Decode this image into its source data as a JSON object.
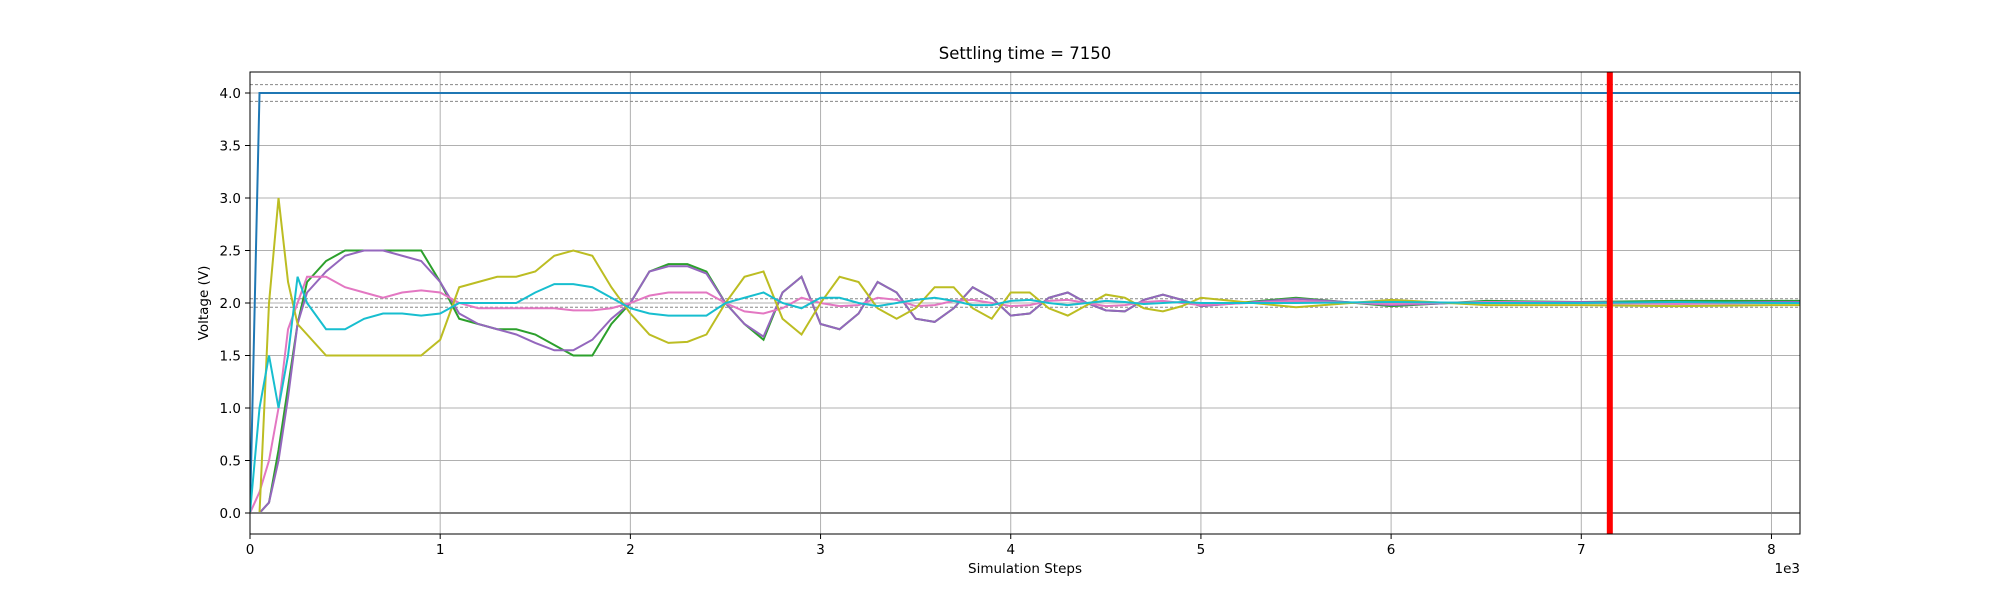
{
  "chart_data": {
    "type": "line",
    "title": "Settling time = 7150",
    "xlabel": "Simulation Steps",
    "ylabel": "Voltage (V)",
    "x_offset_label": "1e3",
    "xlim": [
      0,
      8150
    ],
    "ylim": [
      -0.2,
      4.2
    ],
    "xticks": [
      {
        "value": 0,
        "label": "0"
      },
      {
        "value": 1000,
        "label": "1"
      },
      {
        "value": 2000,
        "label": "2"
      },
      {
        "value": 3000,
        "label": "3"
      },
      {
        "value": 4000,
        "label": "4"
      },
      {
        "value": 5000,
        "label": "5"
      },
      {
        "value": 6000,
        "label": "6"
      },
      {
        "value": 7000,
        "label": "7"
      },
      {
        "value": 8000,
        "label": "8"
      }
    ],
    "yticks": [
      {
        "value": 0,
        "label": "0.0"
      },
      {
        "value": 0.5,
        "label": "0.5"
      },
      {
        "value": 1,
        "label": "1.0"
      },
      {
        "value": 1.5,
        "label": "1.5"
      },
      {
        "value": 2,
        "label": "2.0"
      },
      {
        "value": 2.5,
        "label": "2.5"
      },
      {
        "value": 3,
        "label": "3.0"
      },
      {
        "value": 3.5,
        "label": "3.5"
      },
      {
        "value": 4,
        "label": "4.0"
      }
    ],
    "grid": true,
    "threshold_lines": {
      "color": "#888888",
      "values": [
        4.08,
        3.92,
        2.04,
        1.96
      ]
    },
    "vline": {
      "x": 7150,
      "color": "#ff0000"
    },
    "x": [
      0,
      50,
      100,
      150,
      200,
      250,
      300,
      400,
      500,
      600,
      700,
      800,
      900,
      1000,
      1100,
      1200,
      1300,
      1400,
      1500,
      1600,
      1700,
      1800,
      1900,
      2000,
      2100,
      2200,
      2300,
      2400,
      2500,
      2600,
      2700,
      2800,
      2900,
      3000,
      3100,
      3200,
      3300,
      3400,
      3500,
      3600,
      3700,
      3800,
      3900,
      4000,
      4100,
      4200,
      4300,
      4400,
      4500,
      4600,
      4700,
      4800,
      4900,
      5000,
      5500,
      6000,
      6500,
      7000,
      7500,
      8000,
      8150
    ],
    "series": [
      {
        "color": "#1f77b4",
        "values": [
          0,
          4,
          4,
          4,
          4,
          4,
          4,
          4,
          4,
          4,
          4,
          4,
          4,
          4,
          4,
          4,
          4,
          4,
          4,
          4,
          4,
          4,
          4,
          4,
          4,
          4,
          4,
          4,
          4,
          4,
          4,
          4,
          4,
          4,
          4,
          4,
          4,
          4,
          4,
          4,
          4,
          4,
          4,
          4,
          4,
          4,
          4,
          4,
          4,
          4,
          4,
          4,
          4,
          4,
          4,
          4,
          4,
          4,
          4,
          4,
          4
        ]
      },
      {
        "color": "#2ca02c",
        "values": [
          0,
          0,
          0.1,
          0.6,
          1.2,
          1.8,
          2.2,
          2.4,
          2.5,
          2.5,
          2.5,
          2.5,
          2.5,
          2.2,
          1.85,
          1.8,
          1.75,
          1.75,
          1.7,
          1.6,
          1.5,
          1.5,
          1.8,
          2.0,
          2.3,
          2.37,
          2.37,
          2.3,
          2.0,
          1.8,
          1.65,
          2.1,
          2.25,
          1.8,
          1.75,
          1.9,
          2.2,
          2.1,
          1.85,
          1.82,
          1.95,
          2.15,
          2.05,
          1.88,
          1.9,
          2.05,
          2.1,
          2.0,
          1.93,
          1.92,
          2.03,
          2.08,
          2.03,
          1.97,
          2.05,
          1.97,
          2.02,
          2.01,
          2.02,
          2.02,
          2.02
        ]
      },
      {
        "color": "#9467bd",
        "values": [
          0,
          0,
          0.1,
          0.5,
          1.1,
          1.8,
          2.1,
          2.3,
          2.45,
          2.5,
          2.5,
          2.45,
          2.4,
          2.2,
          1.9,
          1.8,
          1.75,
          1.7,
          1.62,
          1.55,
          1.55,
          1.65,
          1.85,
          2.0,
          2.3,
          2.35,
          2.35,
          2.28,
          2.0,
          1.8,
          1.68,
          2.1,
          2.25,
          1.8,
          1.75,
          1.9,
          2.2,
          2.1,
          1.85,
          1.82,
          1.95,
          2.15,
          2.05,
          1.88,
          1.9,
          2.05,
          2.1,
          2.0,
          1.93,
          1.92,
          2.03,
          2.08,
          2.03,
          1.97,
          2.04,
          1.98,
          2.01,
          2.01,
          2.0,
          2.01,
          2.01
        ]
      },
      {
        "color": "#e377c2",
        "values": [
          0,
          0.2,
          0.5,
          1.0,
          1.75,
          2.0,
          2.25,
          2.25,
          2.15,
          2.1,
          2.05,
          2.1,
          2.12,
          2.1,
          2.0,
          1.95,
          1.95,
          1.95,
          1.95,
          1.95,
          1.93,
          1.93,
          1.95,
          2.0,
          2.07,
          2.1,
          2.1,
          2.1,
          2.0,
          1.92,
          1.9,
          1.95,
          2.05,
          2.0,
          1.97,
          1.98,
          2.05,
          2.03,
          1.97,
          1.98,
          2.02,
          2.03,
          2.0,
          1.97,
          1.98,
          2.02,
          2.03,
          2.0,
          1.97,
          1.98,
          2.01,
          2.02,
          2.0,
          1.98,
          2.02,
          1.99,
          2.01,
          2.0,
          1.99,
          2.0,
          2.0
        ]
      },
      {
        "color": "#bcbd22",
        "values": [
          0,
          0,
          2.0,
          3.0,
          2.2,
          1.8,
          1.7,
          1.5,
          1.5,
          1.5,
          1.5,
          1.5,
          1.5,
          1.65,
          2.15,
          2.2,
          2.25,
          2.25,
          2.3,
          2.45,
          2.5,
          2.45,
          2.15,
          1.9,
          1.7,
          1.62,
          1.63,
          1.7,
          2.0,
          2.25,
          2.3,
          1.85,
          1.7,
          2.0,
          2.25,
          2.2,
          1.95,
          1.85,
          1.95,
          2.15,
          2.15,
          1.95,
          1.85,
          2.1,
          2.1,
          1.95,
          1.88,
          1.98,
          2.08,
          2.05,
          1.95,
          1.92,
          1.97,
          2.05,
          1.96,
          2.03,
          1.98,
          1.98,
          1.97,
          1.98,
          1.98
        ]
      },
      {
        "color": "#17becf",
        "values": [
          0,
          1.0,
          1.5,
          1.0,
          1.5,
          2.25,
          2.0,
          1.75,
          1.75,
          1.85,
          1.9,
          1.9,
          1.88,
          1.9,
          2.0,
          2.0,
          2.0,
          2.0,
          2.1,
          2.18,
          2.18,
          2.15,
          2.05,
          1.95,
          1.9,
          1.88,
          1.88,
          1.88,
          2.0,
          2.05,
          2.1,
          2.0,
          1.95,
          2.05,
          2.05,
          2.0,
          1.97,
          2.0,
          2.03,
          2.05,
          2.02,
          1.98,
          1.98,
          2.02,
          2.03,
          2.0,
          1.98,
          2.0,
          2.02,
          2.01,
          1.99,
          2.0,
          2.01,
          2.0,
          2.0,
          2.01,
          2.0,
          2.0,
          2.01,
          2.0,
          2.0
        ]
      },
      {
        "color": "#7f7f7f",
        "values": [
          0,
          0,
          0,
          0,
          0,
          0,
          0,
          0,
          0,
          0,
          0,
          0,
          0,
          0,
          0,
          0,
          0,
          0,
          0,
          0,
          0,
          0,
          0,
          0,
          0,
          0,
          0,
          0,
          0,
          0,
          0,
          0,
          0,
          0,
          0,
          0,
          0,
          0,
          0,
          0,
          0,
          0,
          0,
          0,
          0,
          0,
          0,
          0,
          0,
          0,
          0,
          0,
          0,
          0,
          0,
          0,
          0,
          0,
          0,
          0,
          0
        ]
      }
    ]
  }
}
